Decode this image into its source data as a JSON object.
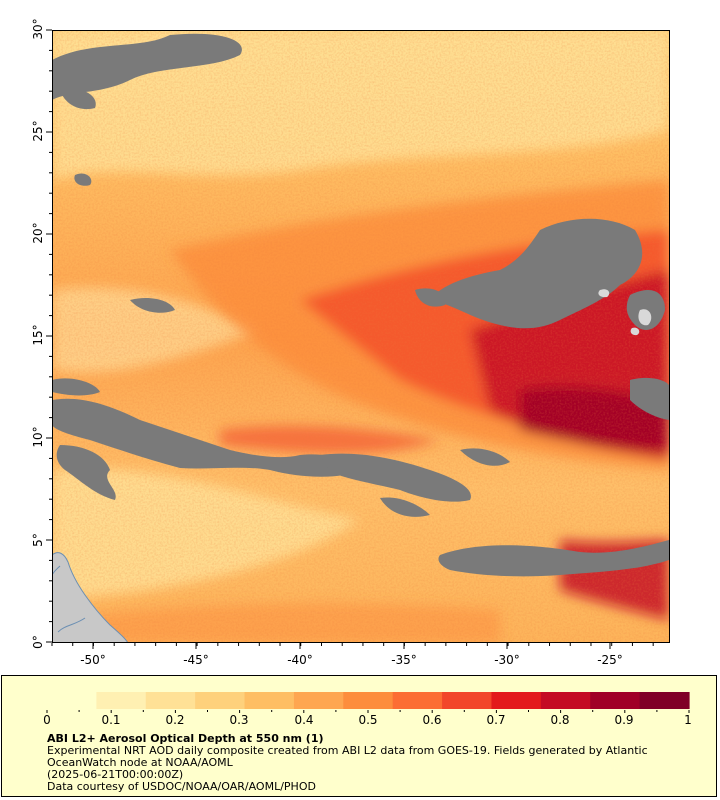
{
  "map": {
    "lat_labels": [
      "0°",
      "5°",
      "10°",
      "15°",
      "20°",
      "25°",
      "30°"
    ],
    "lon_labels": [
      "-50°",
      "-45°",
      "-40°",
      "-35°",
      "-30°",
      "-25°"
    ],
    "colors": {
      "no_data": "#7a7a7a",
      "land": "#c8c8c8",
      "coast": "#6b8fb3",
      "axis": "#000000"
    }
  },
  "legend": {
    "ticks": [
      "0",
      "0.1",
      "0.2",
      "0.3",
      "0.4",
      "0.5",
      "0.6",
      "0.7",
      "0.8",
      "0.9",
      "1"
    ],
    "colors": [
      "#ffffcc",
      "#fff0b2",
      "#ffe196",
      "#fed17c",
      "#febe63",
      "#fea650",
      "#fd8d3c",
      "#fc6d33",
      "#f2462a",
      "#e31a1c",
      "#c40b23",
      "#a00026",
      "#800026"
    ],
    "title": "ABI L2+ Aerosol Optical Depth at 550 nm (1)",
    "description": "Experimental NRT AOD daily composite created from ABI L2 data from GOES-19. Fields generated by Atlantic OceanWatch node at NOAA/AOML",
    "date": "(2025-06-21T00:00:00Z)",
    "credit": "Data courtesy of USDOC/NOAA/OAR/AOML/PHOD"
  }
}
